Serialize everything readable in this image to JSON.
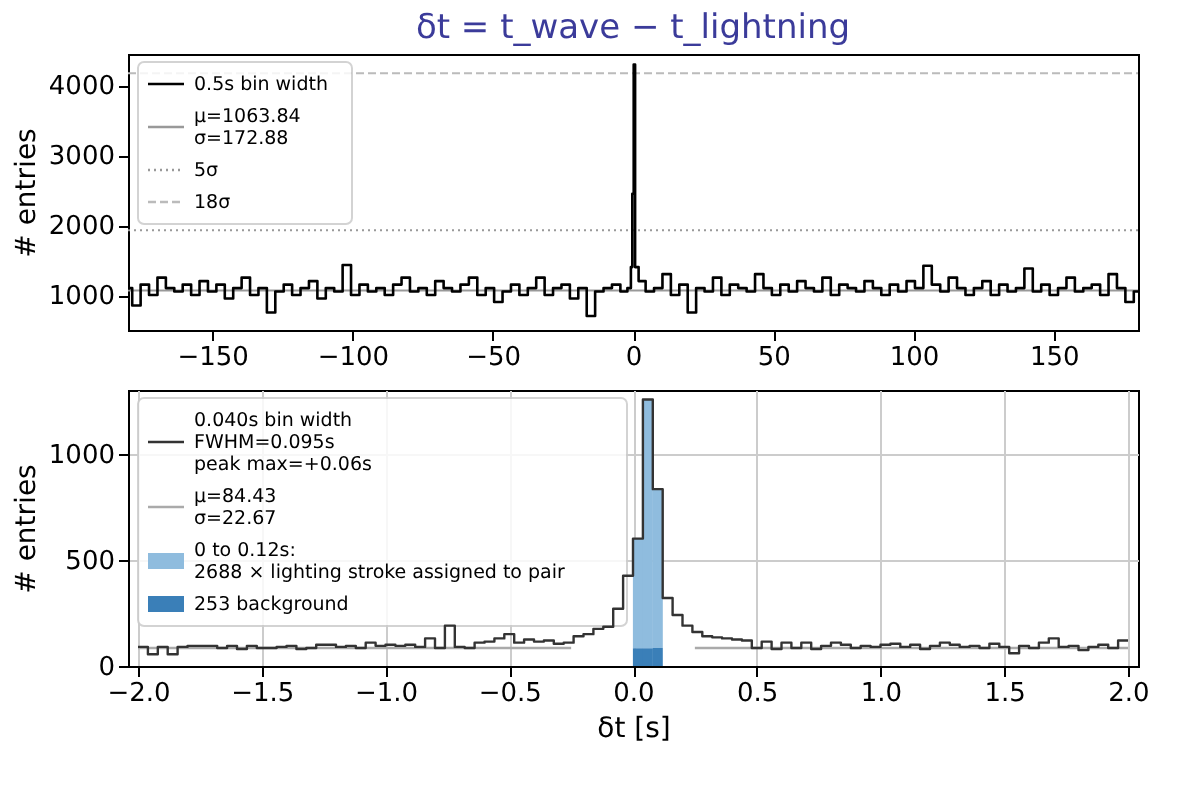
{
  "chart_data": [
    {
      "type": "step",
      "title": "δt = t_wave − t_lightning",
      "ylabel": "# entries",
      "xlim": [
        -180,
        180
      ],
      "xticks": [
        -150,
        -100,
        -50,
        0,
        50,
        100,
        150
      ],
      "ylim": [
        500,
        4450
      ],
      "yticks": [
        1000,
        2000,
        3000,
        4000
      ],
      "grid": false,
      "legend": "top left",
      "series": [
        {
          "name": "0.5s bin width",
          "color": "#000000",
          "x": [
            -180,
            -177,
            -174,
            -171,
            -168,
            -165,
            -162,
            -159,
            -156,
            -153,
            -150,
            -147,
            -144,
            -141,
            -138,
            -135,
            -132,
            -129,
            -126,
            -123,
            -120,
            -117,
            -114,
            -111,
            -108,
            -105,
            -102,
            -99,
            -96,
            -93,
            -90,
            -87,
            -84,
            -81,
            -78,
            -75,
            -72,
            -69,
            -66,
            -63,
            -60,
            -57,
            -54,
            -51,
            -48,
            -45,
            -42,
            -39,
            -36,
            -33,
            -30,
            -27,
            -24,
            -21,
            -18,
            -15,
            -12,
            -9,
            -6,
            -3,
            -1,
            -0.5,
            0,
            0.5,
            1,
            3,
            6,
            9,
            12,
            15,
            18,
            21,
            24,
            27,
            30,
            33,
            36,
            39,
            42,
            45,
            48,
            51,
            54,
            57,
            60,
            63,
            66,
            69,
            72,
            75,
            78,
            81,
            84,
            87,
            90,
            93,
            96,
            99,
            102,
            105,
            108,
            111,
            114,
            117,
            120,
            123,
            126,
            129,
            132,
            135,
            138,
            141,
            144,
            147,
            150,
            153,
            156,
            159,
            162,
            165,
            168,
            171,
            174,
            177,
            180
          ],
          "values": [
            1100,
            850,
            1150,
            1000,
            1250,
            1100,
            1050,
            1150,
            1000,
            1200,
            1050,
            1150,
            950,
            1100,
            1250,
            1000,
            1100,
            750,
            1050,
            1150,
            1000,
            1100,
            1200,
            950,
            1100,
            1050,
            1430,
            1000,
            1150,
            1050,
            1100,
            1000,
            1150,
            1250,
            1050,
            1100,
            1000,
            1200,
            1100,
            1050,
            1150,
            1250,
            1000,
            1100,
            900,
            1050,
            1150,
            1000,
            1100,
            1250,
            1000,
            1100,
            1150,
            950,
            1100,
            700,
            1050,
            1100,
            1150,
            1050,
            1100,
            1400,
            2450,
            4300,
            1400,
            1200,
            1050,
            1100,
            1300,
            1000,
            1150,
            750,
            1100,
            1050,
            1250,
            1000,
            1150,
            1100,
            1050,
            1300,
            1100,
            1000,
            1150,
            1050,
            1200,
            1100,
            1050,
            1250,
            1000,
            1150,
            1100,
            1050,
            1200,
            1100,
            1000,
            1150,
            1050,
            1200,
            1100,
            1420,
            1150,
            1050,
            1250,
            1100,
            1000,
            1100,
            1200,
            1000,
            1150,
            1050,
            1100,
            1380,
            1050,
            1150,
            1000,
            1100,
            1250,
            1050,
            1100,
            1150,
            1000,
            1300,
            1100,
            900,
            1050
          ]
        }
      ],
      "ref_lines": [
        {
          "axis": "y",
          "value": 1063.84,
          "label": "μ=1063.84\nσ=172.88",
          "color": "#999999",
          "line_style": "solid"
        },
        {
          "axis": "y",
          "value": 1928.24,
          "label": "5σ",
          "color": "#999999",
          "line_style": "dotted"
        },
        {
          "axis": "y",
          "value": 4175.68,
          "label": "18σ",
          "color": "#bbbbbb",
          "line_style": "dashed"
        }
      ]
    },
    {
      "type": "histogram",
      "xlabel": "δt [s]",
      "ylabel": "# entries",
      "xlim": [
        -2,
        2
      ],
      "xticks": [
        {
          "value": -2,
          "label": "−2.0"
        },
        {
          "value": -1.5,
          "label": "−1.5"
        },
        {
          "value": -1,
          "label": "−1.0"
        },
        {
          "value": -0.5,
          "label": "−0.5"
        },
        {
          "value": 0,
          "label": "0.0"
        },
        {
          "value": 0.5,
          "label": "0.5"
        },
        {
          "value": 1,
          "label": "1.0"
        },
        {
          "value": 1.5,
          "label": "1.5"
        },
        {
          "value": 2,
          "label": "2.0"
        }
      ],
      "ylim": [
        0,
        1300
      ],
      "yticks": [
        0,
        500,
        1000
      ],
      "grid": true,
      "legend": "top left",
      "bins": [
        -2,
        -1.96,
        -1.92,
        -1.88,
        -1.84,
        -1.8,
        -1.76,
        -1.72,
        -1.68,
        -1.64,
        -1.6,
        -1.56,
        -1.52,
        -1.48,
        -1.44,
        -1.4,
        -1.36,
        -1.32,
        -1.28,
        -1.24,
        -1.2,
        -1.16,
        -1.12,
        -1.08,
        -1.04,
        -1,
        -0.96,
        -0.92,
        -0.88,
        -0.84,
        -0.8,
        -0.76,
        -0.72,
        -0.68,
        -0.64,
        -0.6,
        -0.56,
        -0.52,
        -0.48,
        -0.44,
        -0.4,
        -0.36,
        -0.32,
        -0.28,
        -0.24,
        -0.2,
        -0.16,
        -0.12,
        -0.08,
        -0.04,
        0,
        0.04,
        0.08,
        0.12,
        0.16,
        0.2,
        0.24,
        0.28,
        0.32,
        0.36,
        0.4,
        0.44,
        0.48,
        0.52,
        0.56,
        0.6,
        0.64,
        0.68,
        0.72,
        0.76,
        0.8,
        0.84,
        0.88,
        0.92,
        0.96,
        1,
        1.04,
        1.08,
        1.12,
        1.16,
        1.2,
        1.24,
        1.28,
        1.32,
        1.36,
        1.4,
        1.44,
        1.48,
        1.52,
        1.56,
        1.6,
        1.64,
        1.68,
        1.72,
        1.76,
        1.8,
        1.84,
        1.88,
        1.92,
        1.96,
        2
      ],
      "series": [
        {
          "name": "0.040s bin width\nFWHM=0.095s\npeak max=+0.06s",
          "color": "#333333",
          "type": "histogram",
          "values": [
            90,
            55,
            90,
            55,
            90,
            95,
            95,
            95,
            85,
            95,
            80,
            95,
            85,
            85,
            90,
            95,
            80,
            85,
            100,
            100,
            90,
            95,
            85,
            110,
            95,
            100,
            95,
            100,
            90,
            130,
            85,
            190,
            90,
            85,
            110,
            115,
            130,
            150,
            110,
            125,
            115,
            120,
            105,
            110,
            140,
            150,
            175,
            185,
            270,
            425,
            600,
            1255,
            833,
            320,
            240,
            190,
            160,
            140,
            135,
            130,
            125,
            120,
            85,
            115,
            80,
            110,
            85,
            110,
            80,
            95,
            110,
            100,
            85,
            95,
            90,
            100,
            105,
            90,
            100,
            80,
            95,
            110,
            100,
            90,
            95,
            85,
            105,
            90,
            60,
            95,
            85,
            110,
            130,
            90,
            95,
            75,
            90,
            100,
            85,
            120
          ]
        },
        {
          "name": "μ=84.43\nσ=22.67",
          "color": "#aaaaaa",
          "type": "line",
          "x": [
            -2,
            -0.25,
            0,
            0.25,
            2
          ],
          "values": [
            84.43,
            84.43,
            null,
            84.43,
            84.43
          ]
        },
        {
          "name": "0 to 0.12s:\n2688 × lighting stroke assigned to pair",
          "color": "#8fbcde",
          "type": "bar",
          "x": [
            0.02,
            0.06,
            0.1
          ],
          "base": [
            84,
            84,
            85
          ],
          "values": [
            516,
            1171,
            748
          ]
        },
        {
          "name": "253 background",
          "color": "#3a7fb8",
          "type": "bar",
          "x": [
            0.02,
            0.06,
            0.1
          ],
          "values": [
            84,
            84,
            85
          ]
        }
      ]
    }
  ]
}
